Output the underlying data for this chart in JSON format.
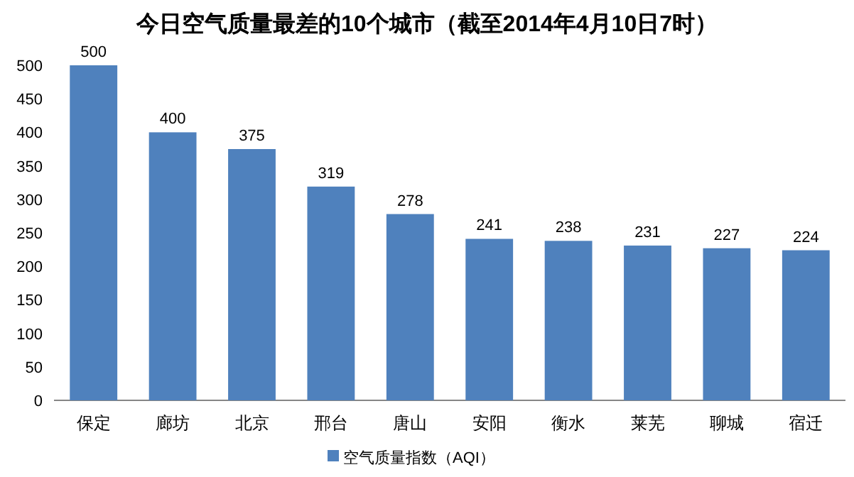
{
  "chart_data": {
    "type": "bar",
    "title": "今日空气质量最差的10个城市（截至2014年4月10日7时）",
    "categories": [
      "保定",
      "廊坊",
      "北京",
      "邢台",
      "唐山",
      "安阳",
      "衡水",
      "莱芜",
      "聊城",
      "宿迁"
    ],
    "series": [
      {
        "name": "空气质量指数（AQI）",
        "color": "#4f81bd",
        "values": [
          500,
          400,
          375,
          319,
          278,
          241,
          238,
          231,
          227,
          224
        ]
      }
    ],
    "ylim": [
      0,
      500
    ],
    "yticks": [
      0,
      50,
      100,
      150,
      200,
      250,
      300,
      350,
      400,
      450,
      500
    ],
    "data_labels": true,
    "legend": "bottom",
    "grid": false
  }
}
